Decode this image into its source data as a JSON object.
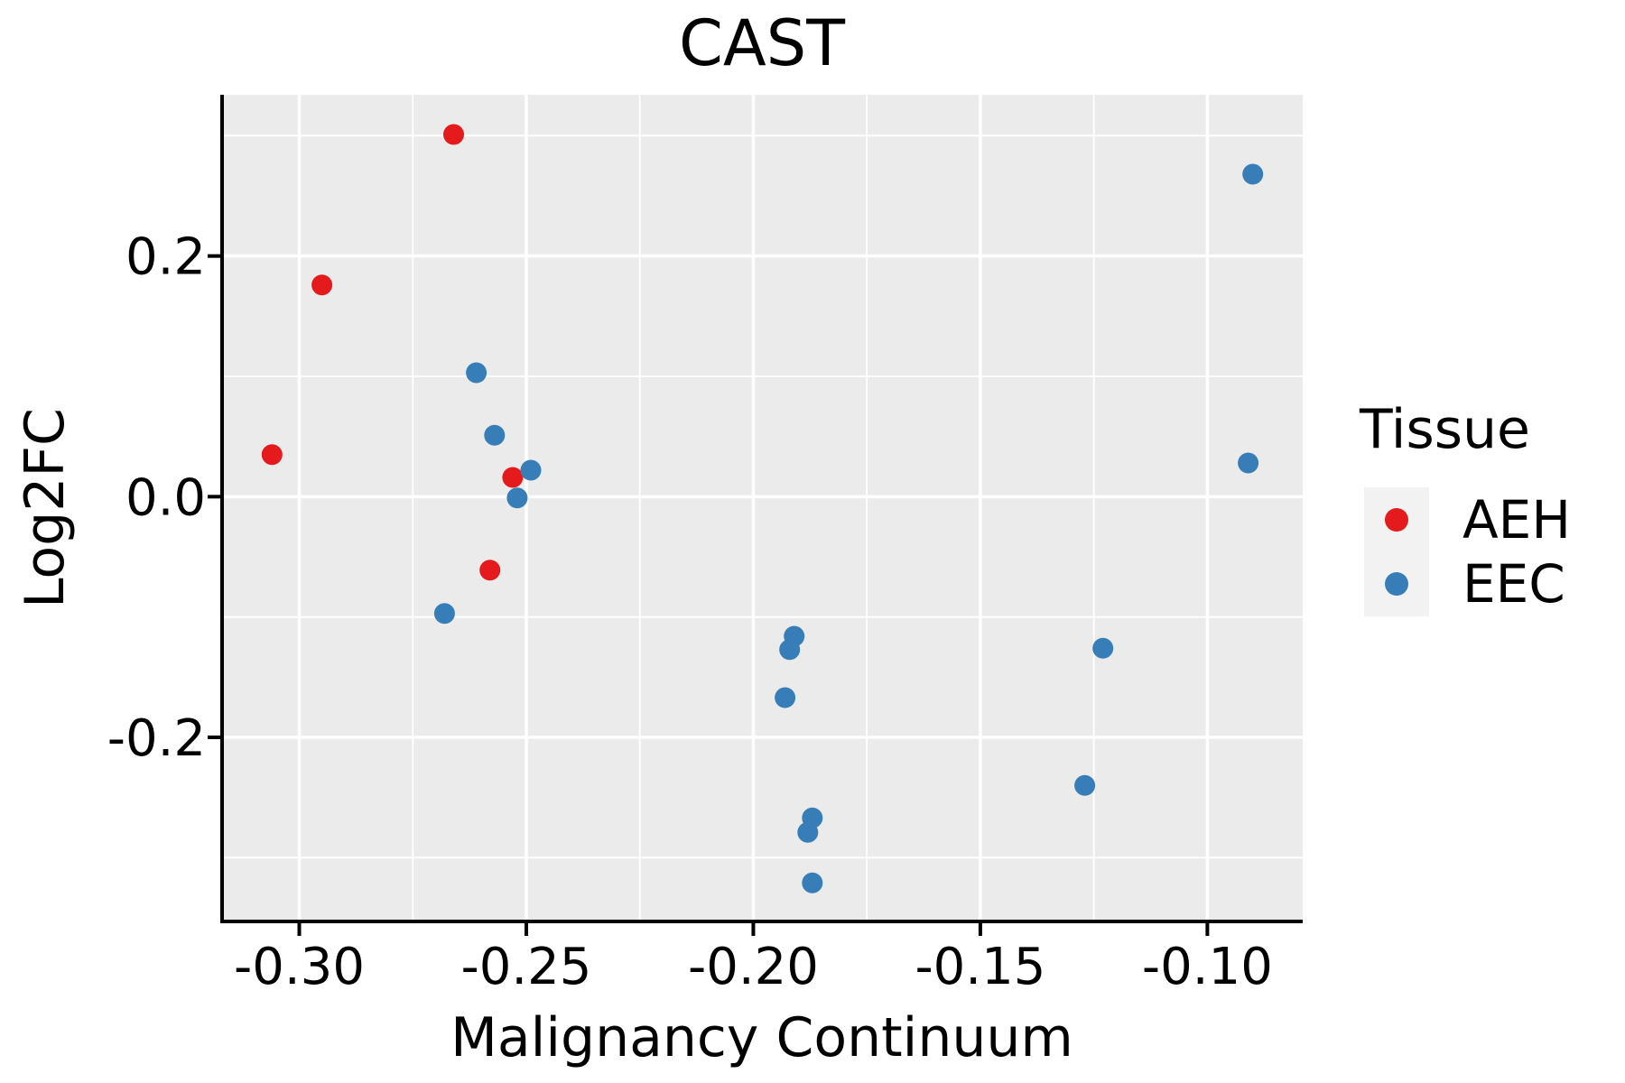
{
  "chart_data": {
    "type": "scatter",
    "title": "CAST",
    "xlabel": "Malignancy Continuum",
    "ylabel": "Log2FC",
    "xlim": [
      -0.317,
      -0.079
    ],
    "ylim": [
      -0.353,
      0.334
    ],
    "x_ticks": [
      -0.3,
      -0.25,
      -0.2,
      -0.15,
      -0.1
    ],
    "x_tick_labels": [
      "-0.30",
      "-0.25",
      "-0.20",
      "-0.15",
      "-0.10"
    ],
    "x_minor_ticks": [
      -0.275,
      -0.225,
      -0.175,
      -0.125
    ],
    "y_ticks": [
      0.2,
      0.0,
      -0.2
    ],
    "y_tick_labels": [
      "0.2",
      "0.0",
      "-0.2"
    ],
    "y_minor_ticks": [
      0.3,
      0.1,
      -0.1,
      -0.3
    ],
    "grid": true,
    "panel_bg": "#EBEBEB",
    "grid_color": "#FFFFFF",
    "axis_color": "#000000",
    "legend": {
      "title": "Tissue",
      "position": "right",
      "key_bg": "#F2F2F2",
      "entries": [
        {
          "label": "AEH",
          "color": "#E41A1C"
        },
        {
          "label": "EEC",
          "color": "#377EB8"
        }
      ]
    },
    "series": [
      {
        "name": "AEH",
        "color": "#E41A1C",
        "points": [
          [
            -0.266,
            0.301
          ],
          [
            -0.295,
            0.176
          ],
          [
            -0.306,
            0.035
          ],
          [
            -0.253,
            0.016
          ],
          [
            -0.258,
            -0.061
          ]
        ]
      },
      {
        "name": "EEC",
        "color": "#377EB8",
        "points": [
          [
            -0.261,
            0.103
          ],
          [
            -0.257,
            0.051
          ],
          [
            -0.249,
            0.022
          ],
          [
            -0.252,
            -0.001
          ],
          [
            -0.268,
            -0.097
          ],
          [
            -0.191,
            -0.116
          ],
          [
            -0.192,
            -0.127
          ],
          [
            -0.193,
            -0.167
          ],
          [
            -0.187,
            -0.267
          ],
          [
            -0.188,
            -0.279
          ],
          [
            -0.187,
            -0.321
          ],
          [
            -0.123,
            -0.126
          ],
          [
            -0.127,
            -0.24
          ],
          [
            -0.09,
            0.268
          ],
          [
            -0.091,
            0.028
          ]
        ]
      }
    ]
  }
}
